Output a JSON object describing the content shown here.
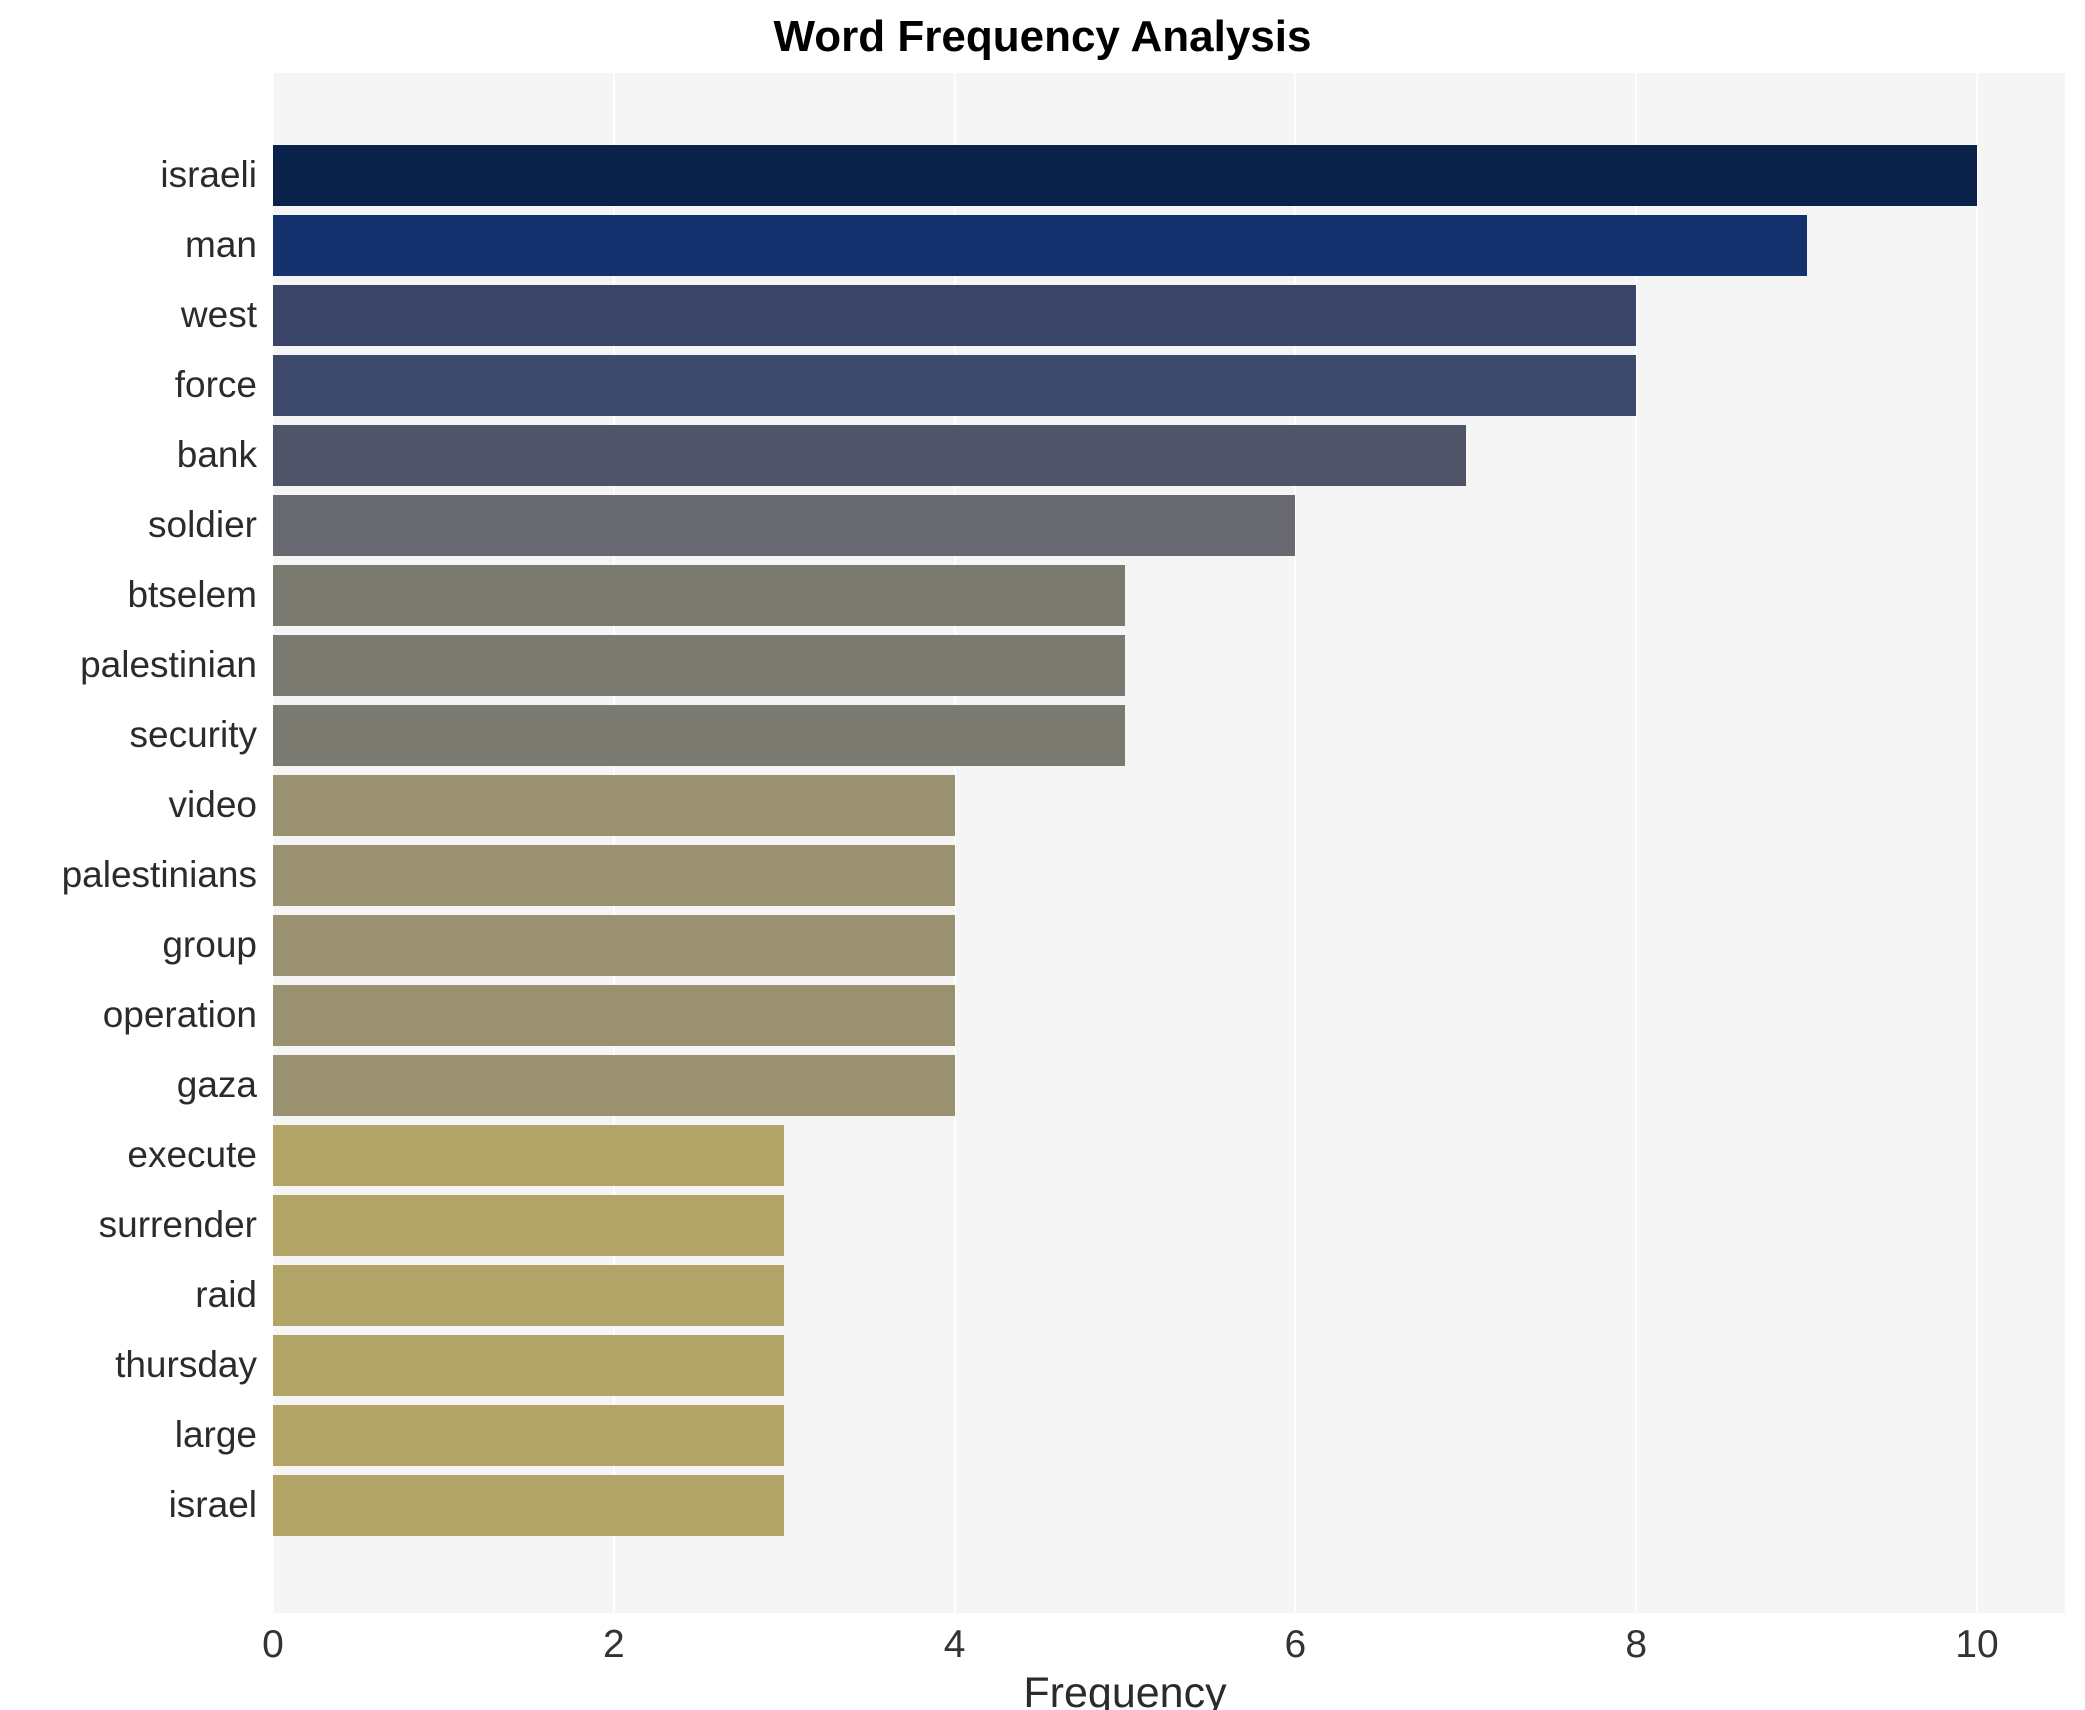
{
  "title": "Word Frequency Analysis",
  "chart_data": {
    "type": "bar",
    "orientation": "horizontal",
    "title": "Word Frequency Analysis",
    "xlabel": "Frequency",
    "ylabel": "",
    "xlim": [
      0,
      10
    ],
    "xticks": [
      0,
      2,
      4,
      6,
      8,
      10
    ],
    "grid": true,
    "legend_position": "none",
    "plot_background": "#f5f5f6",
    "categories": [
      "israeli",
      "man",
      "west",
      "force",
      "bank",
      "soldier",
      "btselem",
      "palestinian",
      "security",
      "video",
      "palestinians",
      "group",
      "operation",
      "gaza",
      "execute",
      "surrender",
      "raid",
      "thursday",
      "large",
      "israel"
    ],
    "values": [
      10,
      9,
      8,
      8,
      7,
      6,
      5,
      5,
      5,
      4,
      4,
      4,
      4,
      4,
      3,
      3,
      3,
      3,
      3,
      3
    ],
    "bar_colors": [
      "#0a2149",
      "#14336e",
      "#3a4368",
      "#3d4a6c",
      "#4f5468",
      "#696a71",
      "#7b7a70",
      "#7b7a70",
      "#7b7a70",
      "#9a9170",
      "#9a9170",
      "#9a9170",
      "#9a9170",
      "#9a9170",
      "#b2a366",
      "#b2a366",
      "#b2a366",
      "#b2a366",
      "#b2a366",
      "#b2a366"
    ]
  }
}
